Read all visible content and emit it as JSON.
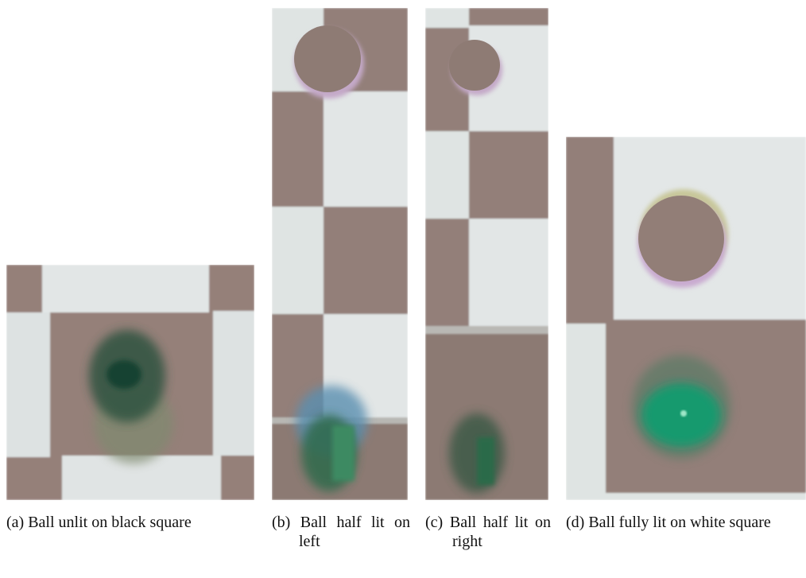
{
  "figure": {
    "panels": [
      {
        "label": "(a)",
        "caption": "Ball unlit on black square"
      },
      {
        "label": "(b)",
        "caption": "Ball half lit on left"
      },
      {
        "label": "(c)",
        "caption": "Ball half lit on right"
      },
      {
        "label": "(d)",
        "caption": "Ball fully lit on white square"
      }
    ]
  }
}
